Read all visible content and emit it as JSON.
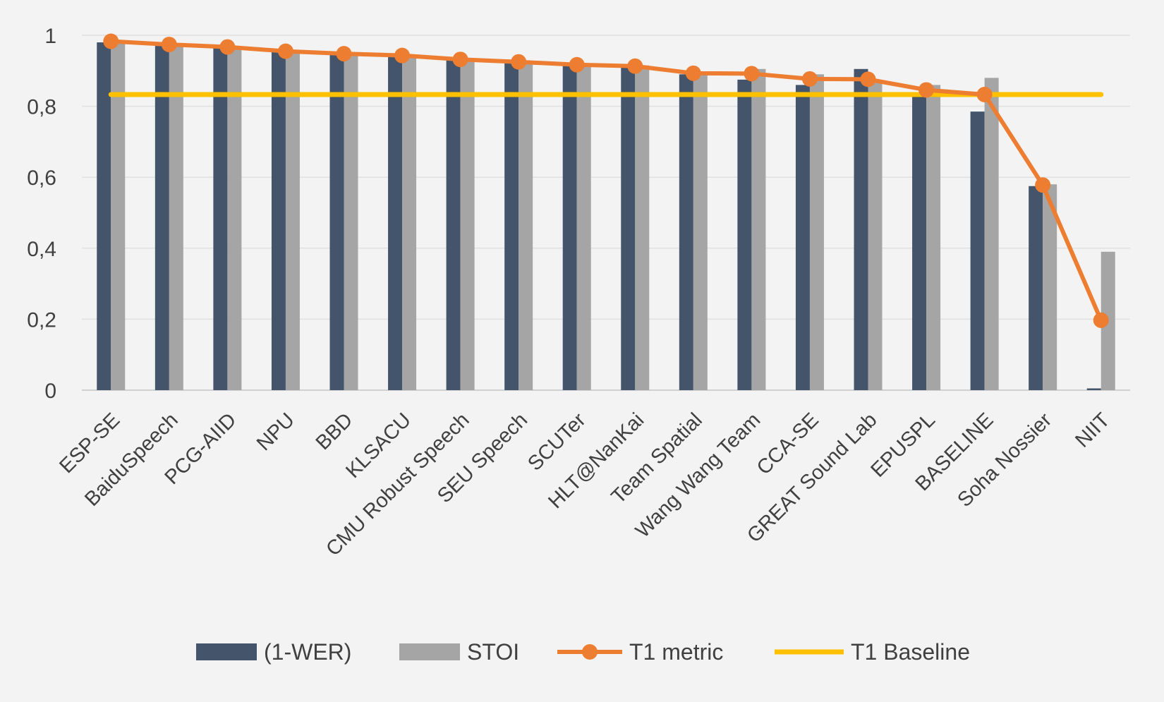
{
  "chart_data": {
    "type": "bar",
    "categories": [
      "ESP-SE",
      "BaiduSpeech",
      "PCG-AIID",
      "NPU",
      "BBD",
      "KLSACU",
      "CMU Robust Speech",
      "SEU Speech",
      "SCUTer",
      "HLT@NanKai",
      "Team Spatial",
      "Wang Wang Team",
      "CCA-SE",
      "GREAT Sound Lab",
      "EPUSPL",
      "BASELINE",
      "Soha Nossier",
      "NIIT"
    ],
    "series": [
      {
        "name": "(1-WER)",
        "kind": "bar",
        "color": "#44546a",
        "values": [
          0.98,
          0.97,
          0.965,
          0.955,
          0.945,
          0.94,
          0.93,
          0.925,
          0.915,
          0.91,
          0.89,
          0.875,
          0.86,
          0.905,
          0.835,
          0.785,
          0.575,
          0.005
        ]
      },
      {
        "name": "STOI",
        "kind": "bar",
        "color": "#a5a5a5",
        "values": [
          0.985,
          0.975,
          0.97,
          0.955,
          0.95,
          0.945,
          0.935,
          0.925,
          0.92,
          0.915,
          0.895,
          0.905,
          0.89,
          0.87,
          0.86,
          0.88,
          0.58,
          0.39
        ]
      },
      {
        "name": "T1 metric",
        "kind": "line-markers",
        "color": "#ed7d31",
        "values": [
          0.983,
          0.974,
          0.967,
          0.955,
          0.948,
          0.943,
          0.932,
          0.925,
          0.917,
          0.913,
          0.893,
          0.892,
          0.877,
          0.876,
          0.846,
          0.833,
          0.578,
          0.197
        ]
      },
      {
        "name": "T1 Baseline",
        "kind": "line",
        "color": "#ffc000",
        "values": [
          0.833,
          0.833,
          0.833,
          0.833,
          0.833,
          0.833,
          0.833,
          0.833,
          0.833,
          0.833,
          0.833,
          0.833,
          0.833,
          0.833,
          0.833,
          0.833,
          0.833,
          0.833
        ]
      }
    ],
    "y_ticks": [
      "0",
      "0,2",
      "0,4",
      "0,6",
      "0,8",
      "1"
    ],
    "ylim": [
      0,
      1
    ],
    "grid": true,
    "legend_position": "bottom",
    "xlabel": "",
    "ylabel": "",
    "title": ""
  }
}
